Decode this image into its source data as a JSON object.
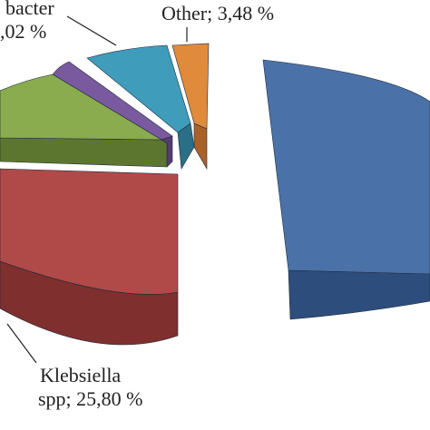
{
  "chart_data": {
    "type": "pie",
    "style": "3d-exploded",
    "title": "",
    "slices": [
      {
        "label_line1": "",
        "label_line2": "",
        "value": null,
        "color": "#4a72a8",
        "side_color": "#2d4d7c"
      },
      {
        "label_line1": "Klebsiella",
        "label_line2": "spp; 25,80 %",
        "value": 25.8,
        "color": "#b04a48",
        "side_color": "#7e2f2e"
      },
      {
        "label_line1": "",
        "label_line2": "",
        "value": null,
        "color": "#8aab4e",
        "side_color": "#5c7630"
      },
      {
        "label_line1": "",
        "label_line2": "",
        "value": null,
        "color": "#7a5a9e",
        "side_color": "#543c70"
      },
      {
        "label_line1": "bacter",
        "label_line2": ",02 %",
        "value": null,
        "color": "#3f9dbb",
        "side_color": "#2a6f86"
      },
      {
        "label_line1": "Other; 3,48 %",
        "label_line2": "",
        "value": 3.48,
        "color": "#e08a3c",
        "side_color": "#a8612a"
      }
    ]
  }
}
